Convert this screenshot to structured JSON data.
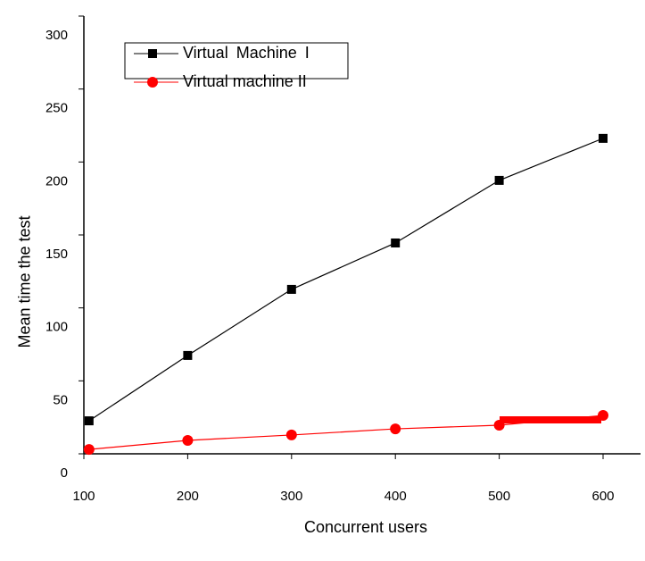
{
  "chart_data": {
    "type": "line",
    "xlabel": "Concurrent users",
    "ylabel": "Mean time the test",
    "x": [
      105,
      200,
      300,
      400,
      500,
      600
    ],
    "series": [
      {
        "name": "Virtual Machine I",
        "color": "#000000",
        "marker": "square",
        "values": [
          22.6,
          67.4,
          112.7,
          144.5,
          187.4,
          216.2
        ]
      },
      {
        "name": "Virtual machine II",
        "color": "#ff0000",
        "marker": "circle",
        "values": [
          3,
          9.2,
          12.9,
          17.1,
          19.6,
          26.3
        ]
      }
    ],
    "xlim": [
      100,
      636
    ],
    "xticks": [
      100,
      200,
      300,
      400,
      500,
      600
    ],
    "ylim": [
      0,
      300
    ],
    "yticks": [
      0,
      50,
      100,
      150,
      200,
      250,
      300
    ],
    "grid": false,
    "legend": "upper left"
  }
}
